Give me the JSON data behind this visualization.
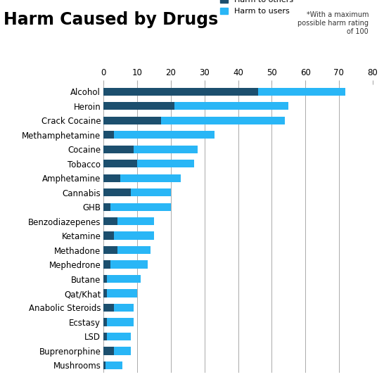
{
  "title": "Harm Caused by Drugs",
  "subtitle": "*With a maximum\npossible harm rating\nof 100",
  "legend_others": "Harm to others",
  "legend_users": "Harm to users",
  "drugs": [
    "Alcohol",
    "Heroin",
    "Crack Cocaine",
    "Methamphetamine",
    "Cocaine",
    "Tobacco",
    "Amphetamine",
    "Cannabis",
    "GHB",
    "Benzodiazepenes",
    "Ketamine",
    "Methadone",
    "Mephedrone",
    "Butane",
    "Qat/Khat",
    "Anabolic Steroids",
    "Ecstasy",
    "LSD",
    "Buprenorphine",
    "Mushrooms"
  ],
  "harm_to_others": [
    46,
    21,
    17,
    3,
    9,
    10,
    5,
    8,
    2,
    4,
    3,
    4,
    2,
    1,
    1,
    3,
    1,
    1,
    3,
    0.5
  ],
  "harm_to_users": [
    26,
    34,
    37,
    30,
    19,
    17,
    18,
    12,
    18,
    11,
    12,
    10,
    11,
    10,
    9,
    6,
    8,
    7,
    5,
    5
  ],
  "color_others": "#1c4f6e",
  "color_users": "#29b6f6",
  "color_gridlines": "#aaaaaa",
  "background_color": "#ffffff",
  "xlim": [
    0,
    80
  ],
  "xticks": [
    0,
    10,
    20,
    30,
    40,
    50,
    60,
    70,
    80
  ],
  "title_fontsize": 17,
  "label_fontsize": 8.5,
  "tick_fontsize": 8.5,
  "subtitle_fontsize": 7,
  "legend_fontsize": 8
}
